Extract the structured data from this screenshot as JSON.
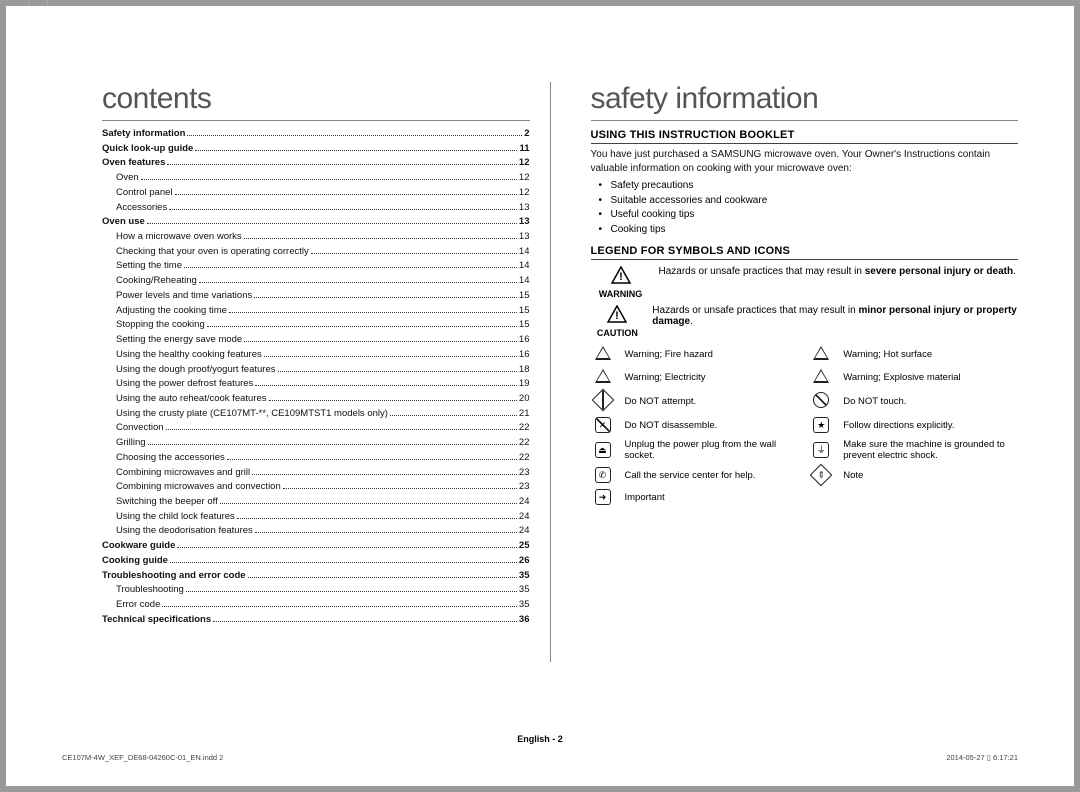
{
  "headings": {
    "contents": "contents",
    "safety": "safety information"
  },
  "toc": [
    {
      "label": "Safety information",
      "page": "2",
      "bold": true
    },
    {
      "label": "Quick look-up guide",
      "page": "11",
      "bold": true
    },
    {
      "label": "Oven features",
      "page": "12",
      "bold": true
    },
    {
      "label": "Oven",
      "page": "12",
      "sub": true
    },
    {
      "label": "Control panel",
      "page": "12",
      "sub": true
    },
    {
      "label": "Accessories",
      "page": "13",
      "sub": true
    },
    {
      "label": "Oven use",
      "page": "13",
      "bold": true
    },
    {
      "label": "How a microwave oven works",
      "page": "13",
      "sub": true
    },
    {
      "label": "Checking that your oven is operating correctly",
      "page": "14",
      "sub": true
    },
    {
      "label": "Setting the time",
      "page": "14",
      "sub": true
    },
    {
      "label": "Cooking/Reheating",
      "page": "14",
      "sub": true
    },
    {
      "label": "Power levels and time variations",
      "page": "15",
      "sub": true
    },
    {
      "label": "Adjusting the cooking time",
      "page": "15",
      "sub": true
    },
    {
      "label": "Stopping the cooking",
      "page": "15",
      "sub": true
    },
    {
      "label": "Setting the energy save mode",
      "page": "16",
      "sub": true
    },
    {
      "label": "Using the healthy cooking features",
      "page": "16",
      "sub": true
    },
    {
      "label": "Using the dough proof/yogurt features",
      "page": "18",
      "sub": true
    },
    {
      "label": "Using the power defrost features",
      "page": "19",
      "sub": true
    },
    {
      "label": "Using the auto reheat/cook features",
      "page": "20",
      "sub": true
    },
    {
      "label": "Using the crusty plate (CE107MT-**, CE109MTST1 models only)",
      "page": "21",
      "sub": true
    },
    {
      "label": "Convection",
      "page": "22",
      "sub": true
    },
    {
      "label": "Grilling",
      "page": "22",
      "sub": true
    },
    {
      "label": "Choosing the accessories",
      "page": "22",
      "sub": true
    },
    {
      "label": "Combining microwaves and grill",
      "page": "23",
      "sub": true
    },
    {
      "label": "Combining microwaves and convection",
      "page": "23",
      "sub": true
    },
    {
      "label": "Switching the beeper off",
      "page": "24",
      "sub": true
    },
    {
      "label": "Using the child lock features",
      "page": "24",
      "sub": true
    },
    {
      "label": "Using the deodorisation features",
      "page": "24",
      "sub": true
    },
    {
      "label": "Cookware guide",
      "page": "25",
      "bold": true
    },
    {
      "label": "Cooking guide",
      "page": "26",
      "bold": true
    },
    {
      "label": "Troubleshooting and error code",
      "page": "35",
      "bold": true
    },
    {
      "label": "Troubleshooting",
      "page": "35",
      "sub": true
    },
    {
      "label": "Error code",
      "page": "35",
      "sub": true
    },
    {
      "label": "Technical specifications",
      "page": "36",
      "bold": true
    }
  ],
  "safety": {
    "section1_title": "USING THIS INSTRUCTION BOOKLET",
    "intro": "You have just purchased a SAMSUNG microwave oven. Your Owner's Instructions contain valuable information on cooking with your microwave oven:",
    "bullets": [
      "Safety precautions",
      "Suitable accessories and cookware",
      "Useful cooking tips",
      "Cooking tips"
    ],
    "section2_title": "LEGEND FOR SYMBOLS AND ICONS",
    "warn": {
      "label": "WARNING",
      "text_pre": "Hazards or unsafe practices that may result in ",
      "text_bold": "severe personal injury or death",
      "text_post": "."
    },
    "caution": {
      "label": "CAUTION",
      "text_pre": "Hazards or unsafe practices that may result in ",
      "text_bold": "minor personal injury or property damage",
      "text_post": "."
    },
    "icons": [
      {
        "left": "Warning; Fire hazard",
        "right": "Warning; Hot surface"
      },
      {
        "left": "Warning; Electricity",
        "right": "Warning; Explosive material"
      },
      {
        "left": "Do NOT attempt.",
        "right": "Do NOT touch."
      },
      {
        "left": "Do NOT disassemble.",
        "right": "Follow directions explicitly."
      },
      {
        "left": "Unplug the power plug from the wall socket.",
        "right": "Make sure the machine is grounded to prevent electric shock."
      },
      {
        "left": "Call the service center for help.",
        "right": "Note"
      },
      {
        "left": "Important",
        "right": ""
      }
    ]
  },
  "footer": {
    "center": "English - 2",
    "left": "CE107M-4W_XEF_DE68-04260C-01_EN.indd   2",
    "right": "2014-05-27   ▯ 6:17:21"
  },
  "colors": {
    "text": "#111111",
    "rule": "#888888",
    "heading": "#555555",
    "page_bg": "#ffffff",
    "frame_bg": "#999999"
  }
}
